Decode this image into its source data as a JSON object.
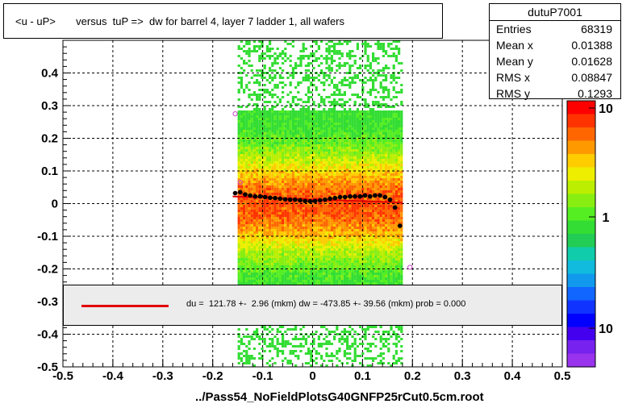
{
  "title": "<u - uP>       versus  tuP =>  dw for barrel 4, layer 7 ladder 1, all wafers",
  "stats": {
    "name": "dutuP7001",
    "rows": [
      {
        "label": "Entries",
        "value": "68319"
      },
      {
        "label": "Mean x",
        "value": "0.01388"
      },
      {
        "label": "Mean y",
        "value": "0.01628"
      },
      {
        "label": "RMS x",
        "value": "0.08847"
      },
      {
        "label": "RMS y",
        "value": "0.1293"
      }
    ]
  },
  "legend": {
    "text": "du =  121.78 +-  2.96 (mkm) dw = -473.85 +- 39.56 (mkm) prob = 0.000",
    "line_color": "#e00000"
  },
  "footer": "../Pass54_NoFieldPlotsG40GNFP25rCut0.5cm.root",
  "chart_data": {
    "type": "heatmap",
    "title": "<u - uP>       versus  tuP =>  dw for barrel 4, layer 7 ladder 1, all wafers",
    "xlabel": "",
    "ylabel": "",
    "xlim": [
      -0.5,
      0.5
    ],
    "ylim": [
      -0.5,
      0.5
    ],
    "x_ticks": [
      "-0.5",
      "-0.4",
      "-0.3",
      "-0.2",
      "-0.1",
      "0",
      "0.1",
      "0.2",
      "0.3",
      "0.4",
      "0.5"
    ],
    "y_ticks": [
      "-0.5",
      "-0.4",
      "-0.3",
      "-0.2",
      "-0.1",
      "0",
      "0.1",
      "0.2",
      "0.3",
      "0.4"
    ],
    "grid": true,
    "colorbar_ticks": [
      "10",
      "1",
      "10"
    ],
    "colorbar_scale": "log",
    "heatmap_x_range": [
      -0.15,
      0.18
    ],
    "profile_points": {
      "x": [
        -0.155,
        -0.145,
        -0.135,
        -0.125,
        -0.115,
        -0.105,
        -0.095,
        -0.085,
        -0.075,
        -0.065,
        -0.055,
        -0.045,
        -0.035,
        -0.025,
        -0.015,
        -0.005,
        0.005,
        0.015,
        0.025,
        0.035,
        0.045,
        0.055,
        0.065,
        0.075,
        0.085,
        0.095,
        0.105,
        0.115,
        0.125,
        0.135,
        0.145,
        0.155,
        0.165,
        0.175
      ],
      "y": [
        0.032,
        0.035,
        0.028,
        0.025,
        0.022,
        0.022,
        0.02,
        0.018,
        0.017,
        0.015,
        0.013,
        0.012,
        0.012,
        0.01,
        0.008,
        0.007,
        0.008,
        0.01,
        0.012,
        0.015,
        0.017,
        0.02,
        0.02,
        0.022,
        0.022,
        0.022,
        0.025,
        0.022,
        0.025,
        0.025,
        0.02,
        0.012,
        -0.012,
        -0.068
      ]
    },
    "outlier_points": {
      "x": [
        -0.155,
        -0.145,
        0.195
      ],
      "y": [
        0.275,
        0.065,
        -0.195
      ]
    },
    "fit_line": {
      "x": [
        -0.16,
        0.18
      ],
      "y": [
        0.022,
        0.003
      ]
    }
  }
}
